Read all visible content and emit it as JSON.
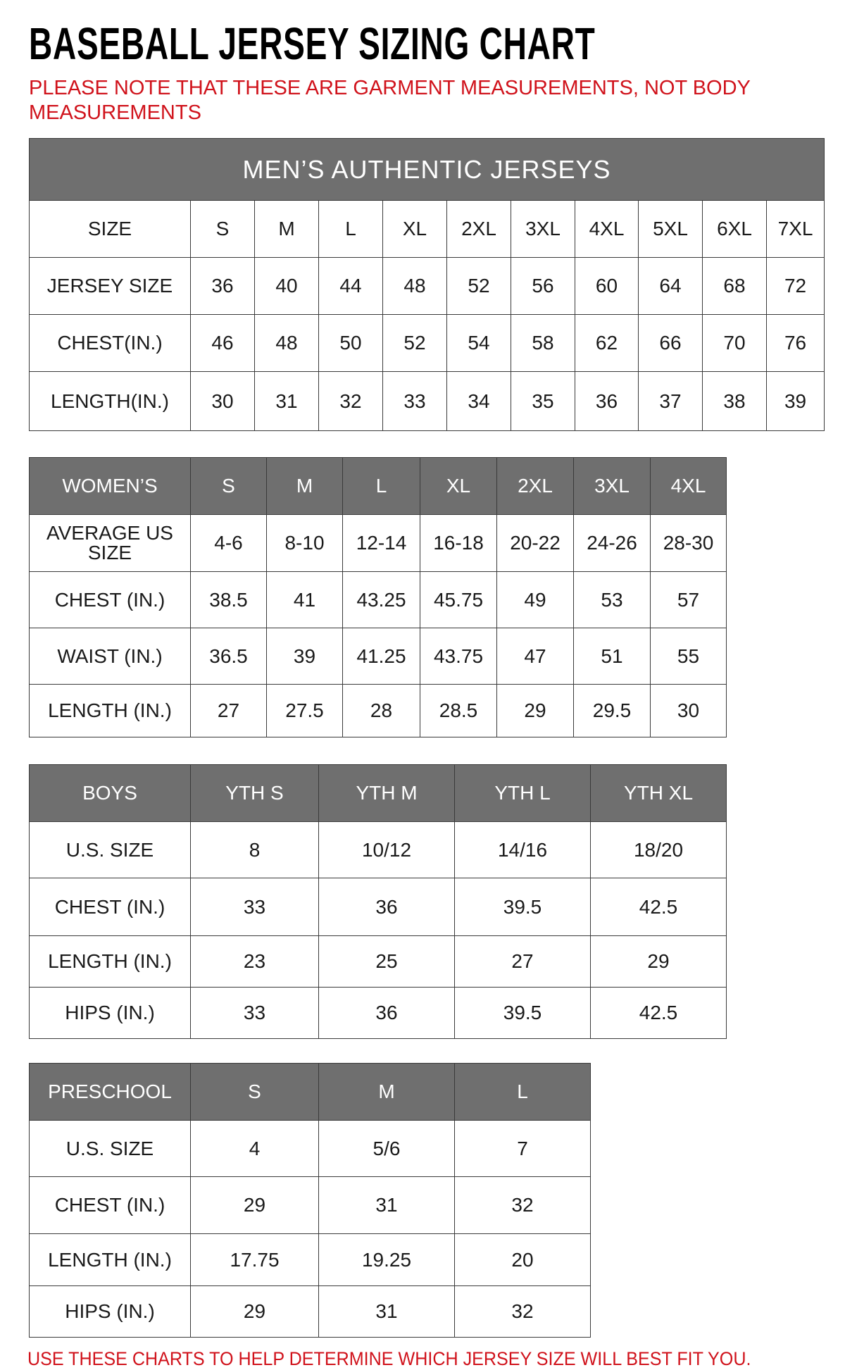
{
  "title": "BASEBALL JERSEY SIZING CHART",
  "note": "PLEASE NOTE THAT THESE ARE GARMENT MEASUREMENTS, NOT BODY MEASUREMENTS",
  "footer": "USE THESE CHARTS TO HELP DETERMINE WHICH JERSEY SIZE WILL BEST FIT YOU.",
  "colors": {
    "header_bg": "#6f6f6f",
    "accent_red": "#d0121b"
  },
  "tables": [
    {
      "banner": "MEN’S AUTHENTIC JERSEYS",
      "header": [
        "SIZE",
        "S",
        "M",
        "L",
        "XL",
        "2XL",
        "3XL",
        "4XL",
        "5XL",
        "6XL",
        "7XL"
      ],
      "header_style": "plain",
      "rows": [
        [
          "JERSEY SIZE",
          "36",
          "40",
          "44",
          "48",
          "52",
          "56",
          "60",
          "64",
          "68",
          "72"
        ],
        [
          "CHEST(IN.)",
          "46",
          "48",
          "50",
          "52",
          "54",
          "58",
          "62",
          "66",
          "70",
          "76"
        ],
        [
          "LENGTH(IN.)",
          "30",
          "31",
          "32",
          "33",
          "34",
          "35",
          "36",
          "37",
          "38",
          "39"
        ]
      ]
    },
    {
      "header": [
        "WOMEN’S",
        "S",
        "M",
        "L",
        "XL",
        "2XL",
        "3XL",
        "4XL"
      ],
      "header_style": "gray",
      "rows": [
        [
          "AVERAGE US SIZE",
          "4-6",
          "8-10",
          "12-14",
          "16-18",
          "20-22",
          "24-26",
          "28-30"
        ],
        [
          "CHEST (IN.)",
          "38.5",
          "41",
          "43.25",
          "45.75",
          "49",
          "53",
          "57"
        ],
        [
          "WAIST (IN.)",
          "36.5",
          "39",
          "41.25",
          "43.75",
          "47",
          "51",
          "55"
        ],
        [
          "LENGTH (IN.)",
          "27",
          "27.5",
          "28",
          "28.5",
          "29",
          "29.5",
          "30"
        ]
      ]
    },
    {
      "header": [
        "BOYS",
        "YTH S",
        "YTH M",
        "YTH L",
        "YTH XL"
      ],
      "header_style": "gray",
      "rows": [
        [
          "U.S. SIZE",
          "8",
          "10/12",
          "14/16",
          "18/20"
        ],
        [
          "CHEST (IN.)",
          "33",
          "36",
          "39.5",
          "42.5"
        ],
        [
          "LENGTH (IN.)",
          "23",
          "25",
          "27",
          "29"
        ],
        [
          "HIPS (IN.)",
          "33",
          "36",
          "39.5",
          "42.5"
        ]
      ]
    },
    {
      "header": [
        "PRESCHOOL",
        "S",
        "M",
        "L"
      ],
      "header_style": "gray",
      "rows": [
        [
          "U.S. SIZE",
          "4",
          "5/6",
          "7"
        ],
        [
          "CHEST (IN.)",
          "29",
          "31",
          "32"
        ],
        [
          "LENGTH (IN.)",
          "17.75",
          "19.25",
          "20"
        ],
        [
          "HIPS (IN.)",
          "29",
          "31",
          "32"
        ]
      ]
    }
  ]
}
